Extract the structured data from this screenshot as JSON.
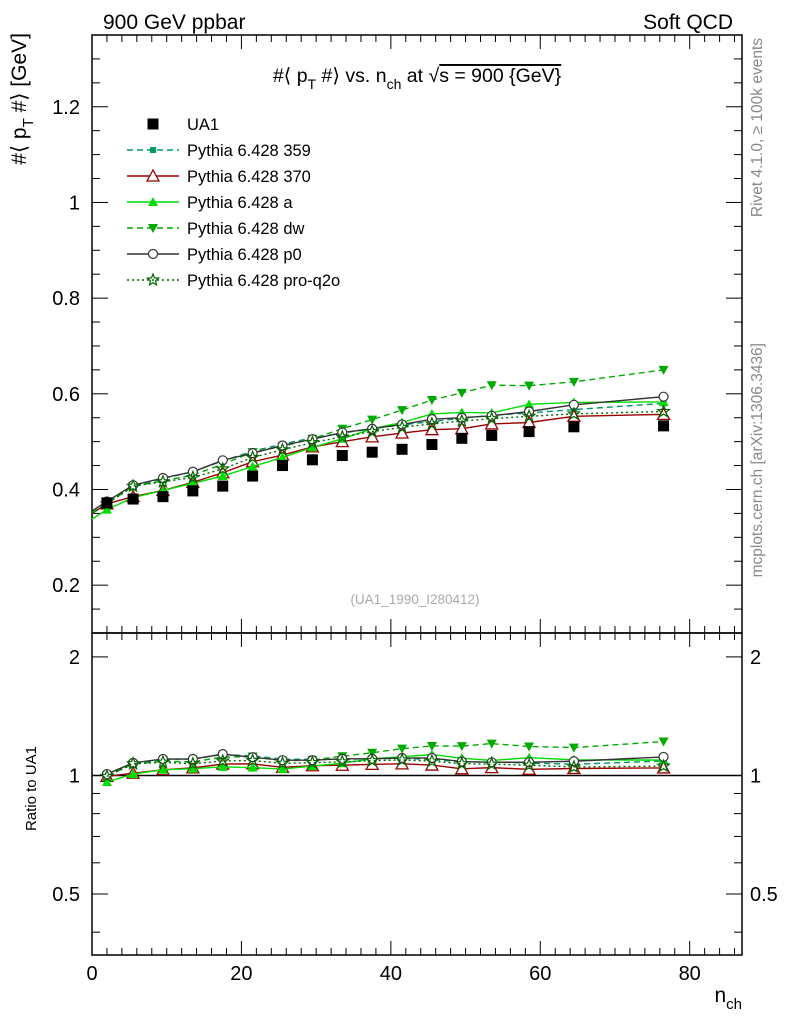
{
  "header": {
    "left": "900 GeV ppbar",
    "right": "Soft QCD"
  },
  "side_labels": {
    "rivet": "Rivet 4.1.0, ≥ 100k events",
    "mcplots": "mcplots.cern.ch [arXiv:1306.3436]"
  },
  "chart_data": {
    "type": "scatter",
    "title": "#⟨ p_T #⟩ vs. n_ch at √s = 900 {GeV}",
    "title_parts": {
      "main": "#⟨ p",
      "sub1": "T",
      "mid": " #⟩ vs. n",
      "sub2": "ch",
      "tail": " at ",
      "sqrt": "√",
      "s_part": "s = 900 {GeV}"
    },
    "ylabel_parts": {
      "a": "#⟨ p",
      "b": "T",
      "c": " #⟩ [GeV]"
    },
    "xlabel_parts": {
      "a": "n",
      "b": "ch"
    },
    "ratio_ylabel": "Ratio to UA1",
    "watermark": "(UA1_1990_I280412)",
    "xlim": [
      0,
      87
    ],
    "ylim": [
      0.1,
      1.35
    ],
    "ratio_ylim": [
      0.35,
      2.3
    ],
    "x_ticks": [
      "0",
      "20",
      "40",
      "60",
      "80"
    ],
    "x_tick_values": [
      0,
      20,
      40,
      60,
      80
    ],
    "y_ticks": [
      "0.2",
      "0.4",
      "0.6",
      "0.8",
      "1",
      "1.2"
    ],
    "y_tick_values": [
      0.2,
      0.4,
      0.6,
      0.8,
      1.0,
      1.2
    ],
    "ratio_ticks": [
      "0.5",
      "1",
      "2"
    ],
    "ratio_tick_values": [
      0.5,
      1,
      2
    ],
    "x": [
      2,
      5.5,
      9.5,
      13.5,
      17.5,
      21.5,
      25.5,
      29.5,
      33.5,
      37.5,
      41.5,
      45.5,
      49.5,
      53.5,
      58.5,
      64.5,
      76.5
    ],
    "data": {
      "name": "UA1",
      "values": [
        0.372,
        0.38,
        0.385,
        0.397,
        0.407,
        0.428,
        0.45,
        0.462,
        0.471,
        0.478,
        0.484,
        0.494,
        0.507,
        0.513,
        0.521,
        0.531,
        0.533
      ]
    },
    "series": [
      {
        "name": "Pythia 6.428 359",
        "color": "#009966",
        "marker": "square-small",
        "dash": "6,4",
        "values": [
          0.375,
          0.406,
          0.423,
          0.437,
          0.46,
          0.48,
          0.495,
          0.508,
          0.518,
          0.527,
          0.535,
          0.542,
          0.549,
          0.555,
          0.56,
          0.567,
          0.58
        ]
      },
      {
        "name": "Pythia 6.428 370",
        "color": "#990000",
        "marker": "triangle-open",
        "dash": "",
        "values": [
          0.37,
          0.385,
          0.398,
          0.415,
          0.435,
          0.458,
          0.472,
          0.489,
          0.5,
          0.51,
          0.518,
          0.525,
          0.527,
          0.537,
          0.54,
          0.553,
          0.557
        ]
      },
      {
        "name": "Pythia 6.428 a",
        "color": "#00dd00",
        "marker": "triangle-filled",
        "dash": "",
        "values": [
          0.358,
          0.383,
          0.398,
          0.413,
          0.428,
          0.448,
          0.467,
          0.488,
          0.506,
          0.527,
          0.54,
          0.558,
          0.561,
          0.56,
          0.578,
          0.582,
          0.583
        ]
      },
      {
        "name": "Pythia 6.428 dw",
        "color": "#00aa00",
        "marker": "triangle-down-filled",
        "dash": "6,4",
        "values": [
          0.371,
          0.406,
          0.418,
          0.43,
          0.453,
          0.478,
          0.49,
          0.506,
          0.527,
          0.546,
          0.566,
          0.587,
          0.602,
          0.618,
          0.617,
          0.625,
          0.65
        ]
      },
      {
        "name": "Pythia 6.428 p0",
        "color": "#333333",
        "marker": "circle-open",
        "dash": "",
        "values": [
          0.375,
          0.409,
          0.424,
          0.437,
          0.461,
          0.476,
          0.492,
          0.505,
          0.519,
          0.527,
          0.536,
          0.547,
          0.55,
          0.554,
          0.563,
          0.577,
          0.594
        ]
      },
      {
        "name": "Pythia 6.428 pro-q2o",
        "color": "#006600",
        "marker": "star-open",
        "dash": "2,3",
        "values": [
          0.37,
          0.407,
          0.416,
          0.425,
          0.443,
          0.467,
          0.483,
          0.498,
          0.51,
          0.521,
          0.53,
          0.537,
          0.543,
          0.548,
          0.553,
          0.558,
          0.563
        ]
      }
    ]
  }
}
